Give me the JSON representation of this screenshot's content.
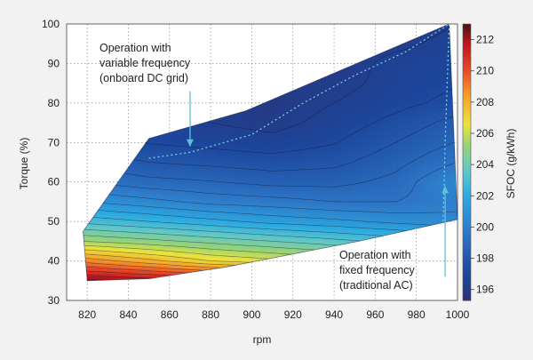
{
  "chart_data": {
    "type": "heatmap",
    "title": "",
    "xlabel": "rpm",
    "ylabel": "Torque (%)",
    "colorbar_label": "SFOC (g/kWh)",
    "xlim": [
      810,
      1000
    ],
    "ylim": [
      30,
      100
    ],
    "xticks": [
      820,
      840,
      860,
      880,
      900,
      920,
      940,
      960,
      980,
      1000
    ],
    "yticks": [
      30,
      40,
      50,
      60,
      70,
      80,
      90,
      100
    ],
    "clim": [
      195.3,
      213
    ],
    "cticks": [
      196,
      198,
      200,
      202,
      204,
      206,
      208,
      210,
      212
    ],
    "grid": true,
    "operating_envelope": [
      {
        "x": 818,
        "y": 47.5
      },
      {
        "x": 850,
        "y": 71
      },
      {
        "x": 897,
        "y": 78
      },
      {
        "x": 996,
        "y": 100
      },
      {
        "x": 1000,
        "y": 50.5
      },
      {
        "x": 952,
        "y": 45
      },
      {
        "x": 888,
        "y": 38.5
      },
      {
        "x": 850,
        "y": 35.5
      },
      {
        "x": 820,
        "y": 35
      },
      {
        "x": 818,
        "y": 47.5
      }
    ],
    "sfoc_grid": {
      "rpm": [
        818,
        850,
        880,
        910,
        940,
        970,
        1000
      ],
      "torque": [
        35,
        40,
        45,
        50,
        55,
        60,
        65,
        70,
        75,
        80,
        85,
        90,
        95,
        100
      ],
      "values": [
        [
          212.5,
          212.0,
          211.5,
          211.0,
          210.5,
          210.0,
          209.5
        ],
        [
          209.0,
          208.0,
          207.0,
          206.5,
          206.0,
          205.5,
          205.0
        ],
        [
          205.5,
          205.0,
          204.5,
          204.0,
          203.5,
          203.0,
          202.5
        ],
        [
          203.0,
          202.5,
          202.0,
          201.5,
          201.2,
          200.8,
          200.5
        ],
        [
          201.0,
          200.5,
          200.0,
          199.8,
          199.5,
          199.5,
          200.0
        ],
        [
          199.5,
          199.0,
          198.8,
          198.5,
          198.5,
          199.0,
          200.5
        ],
        [
          198.5,
          198.0,
          197.8,
          197.6,
          197.8,
          198.5,
          199.5
        ],
        [
          197.8,
          197.2,
          197.0,
          196.8,
          197.2,
          198.0,
          198.8
        ],
        [
          197.5,
          197.0,
          196.5,
          196.2,
          196.8,
          197.5,
          198.3
        ],
        [
          197.5,
          197.0,
          196.3,
          196.0,
          196.5,
          197.0,
          197.5
        ],
        [
          197.5,
          197.0,
          196.3,
          196.0,
          196.2,
          196.8,
          197.2
        ],
        [
          197.5,
          197.0,
          196.3,
          196.0,
          196.0,
          196.8,
          197.0
        ],
        [
          197.5,
          197.0,
          196.3,
          196.0,
          195.9,
          196.3,
          196.8
        ],
        [
          197.5,
          197.0,
          196.3,
          196.0,
          195.8,
          196.0,
          196.5
        ]
      ]
    },
    "annotations": [
      {
        "name": "variable-frequency",
        "lines": [
          "Operation with",
          "variable frequency",
          "(onboard DC grid)"
        ],
        "arrow_from": {
          "x": 870,
          "y": 83
        },
        "arrow_to": {
          "x": 870,
          "y": 69
        }
      },
      {
        "name": "fixed-frequency",
        "lines": [
          "Operation with",
          "fixed frequency",
          "(traditional AC)"
        ],
        "arrow_from": {
          "x": 994,
          "y": 36
        },
        "arrow_to": {
          "x": 994,
          "y": 59
        }
      }
    ],
    "operating_curves": [
      {
        "name": "variable-frequency-curve",
        "points": [
          {
            "x": 850,
            "y": 66
          },
          {
            "x": 870,
            "y": 67.5
          },
          {
            "x": 900,
            "y": 72
          },
          {
            "x": 925,
            "y": 80
          },
          {
            "x": 950,
            "y": 87
          },
          {
            "x": 975,
            "y": 93
          },
          {
            "x": 996,
            "y": 100
          }
        ]
      },
      {
        "name": "fixed-frequency-curve",
        "points": [
          {
            "x": 996,
            "y": 100
          },
          {
            "x": 995,
            "y": 85
          },
          {
            "x": 994,
            "y": 70
          },
          {
            "x": 993,
            "y": 50
          }
        ]
      }
    ]
  }
}
